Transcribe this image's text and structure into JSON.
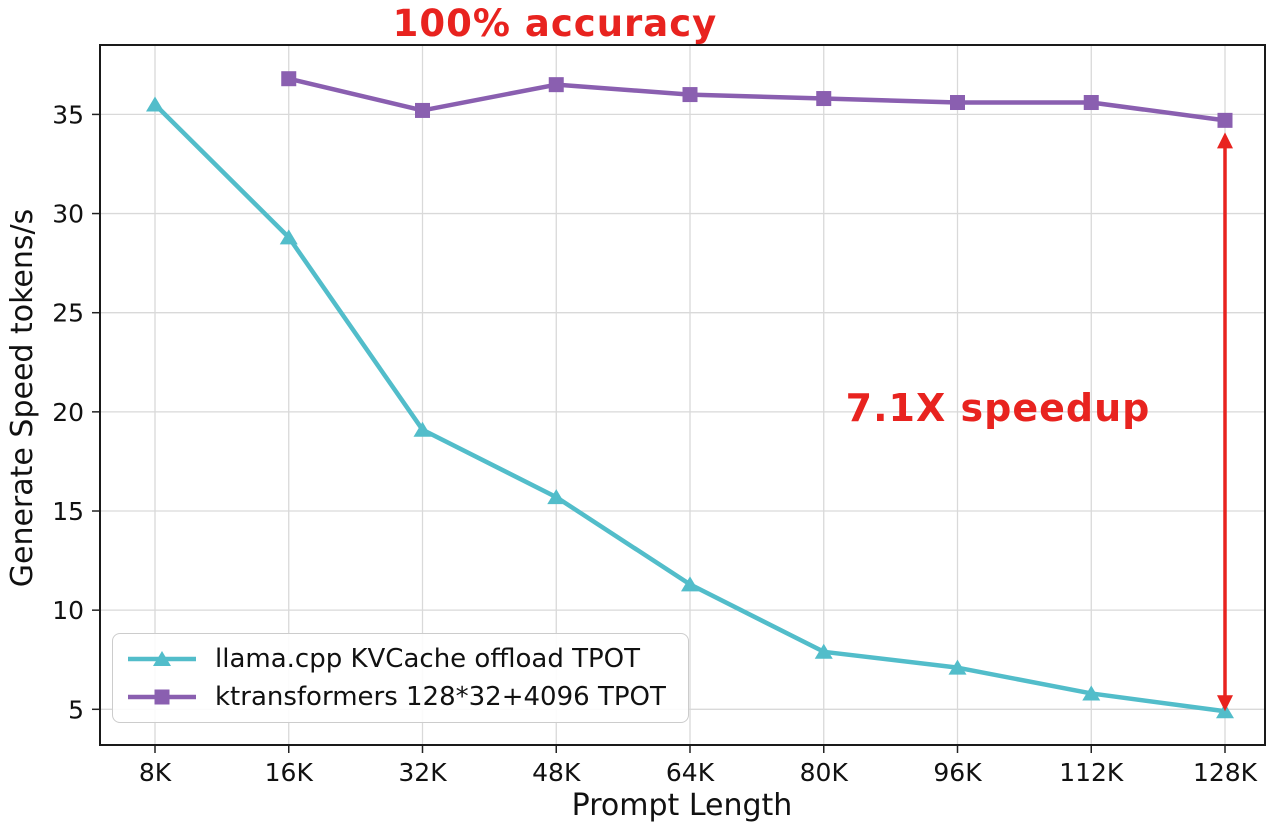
{
  "chart_data": {
    "type": "line",
    "title": "",
    "xlabel": "Prompt Length",
    "ylabel": "Generate Speed tokens/s",
    "categories": [
      "8K",
      "16K",
      "32K",
      "48K",
      "64K",
      "80K",
      "96K",
      "112K",
      "128K"
    ],
    "yticks": [
      5,
      10,
      15,
      20,
      25,
      30,
      35
    ],
    "ylim": [
      3.2,
      38.5
    ],
    "grid": true,
    "legend_position": "lower left",
    "series": [
      {
        "name": "llama.cpp KVCache offload TPOT",
        "color": "#52bdca",
        "marker": "triangle",
        "x": [
          "8K",
          "16K",
          "32K",
          "48K",
          "64K",
          "80K",
          "96K",
          "112K",
          "128K"
        ],
        "values": [
          35.5,
          28.8,
          19.1,
          15.7,
          11.3,
          7.9,
          7.1,
          5.8,
          4.9
        ]
      },
      {
        "name": "ktransformers 128*32+4096 TPOT",
        "color": "#8a5fb0",
        "marker": "square",
        "x": [
          "16K",
          "32K",
          "48K",
          "64K",
          "80K",
          "96K",
          "112K",
          "128K"
        ],
        "values": [
          36.8,
          35.2,
          36.5,
          36.0,
          35.8,
          35.6,
          35.6,
          34.7
        ]
      }
    ],
    "annotations": {
      "accuracy": "100% accuracy",
      "speedup": "7.1X speedup",
      "color": "#e8231f"
    },
    "speedup_arrow": {
      "x": "128K",
      "from": 34.7,
      "to": 5.0
    }
  },
  "axis": {
    "grid_color": "#d9d9d9",
    "tick_color": "#222222",
    "text_color": "#111111",
    "border_color": "#1a1a1a"
  }
}
